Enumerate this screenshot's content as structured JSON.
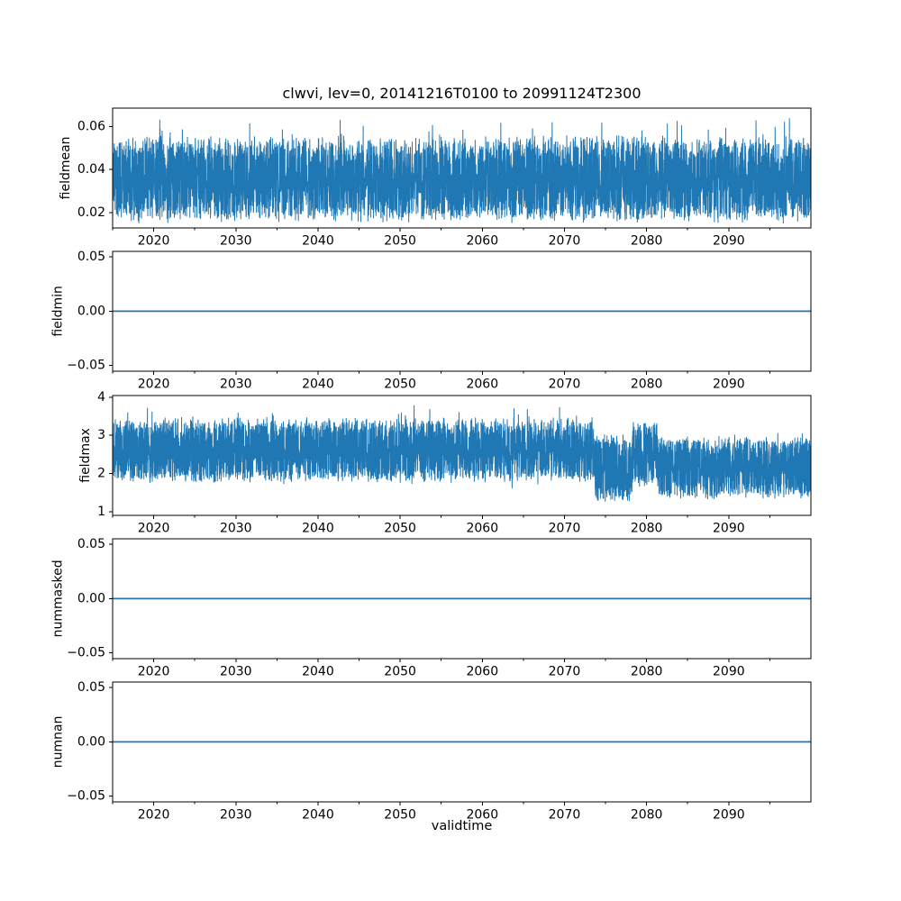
{
  "figure": {
    "background_color": "#ffffff",
    "line_color": "#1f77b4",
    "spine_color": "#000000",
    "text_color": "#000000"
  },
  "chart_data": {
    "type": "line",
    "title": "clwvi, lev=0, 20141216T0100 to 20991124T2300",
    "variable": "clwvi",
    "level": "lev=0",
    "time_range": {
      "start": "20141216T0100",
      "end": "20991124T2300"
    },
    "xlabel": "validtime",
    "legend": "none",
    "grid": false,
    "x_axis": {
      "lim": [
        2015,
        2100
      ],
      "major_ticks": [
        2020,
        2030,
        2040,
        2050,
        2060,
        2070,
        2080,
        2090
      ],
      "major_tick_labels": [
        "2020",
        "2030",
        "2040",
        "2050",
        "2060",
        "2070",
        "2080",
        "2090"
      ],
      "minor_ticks": [
        2015,
        2025,
        2035,
        2045,
        2055,
        2065,
        2075,
        2085,
        2095
      ]
    },
    "panels": [
      {
        "name": "fieldmean",
        "ylabel": "fieldmean",
        "ylim": [
          0.0129,
          0.0685
        ],
        "yticks": [
          0.02,
          0.04,
          0.06
        ],
        "ytick_labels": [
          "0.02",
          "0.04",
          "0.06"
        ],
        "series": {
          "kind": "noisy-band",
          "seed": 1337,
          "points": 6500,
          "linewidth": 1.0,
          "approx_solid_band": [
            0.024,
            0.047
          ],
          "approx_extremes": [
            0.015,
            0.066
          ],
          "segments": [
            {
              "x0": 2015,
              "x1": 2100,
              "mean": 0.034,
              "spread": 0.0125,
              "up_fuzz": {
                "p": 0.26,
                "amp": 0.011
              },
              "spike_up": {
                "p": 0.01,
                "amp": 0.019
              },
              "down_fuzz": {
                "p": 0.2,
                "amp": 0.0075
              },
              "spike_down": {
                "p": 0.0,
                "amp": 0.0
              }
            }
          ]
        }
      },
      {
        "name": "fieldmin",
        "ylabel": "fieldmin",
        "ylim": [
          -0.055,
          0.055
        ],
        "yticks": [
          -0.05,
          0.0,
          0.05
        ],
        "ytick_labels": [
          "−0.05",
          "0.00",
          "0.05"
        ],
        "series": {
          "kind": "constant",
          "value": 0.0,
          "linewidth": 1.8
        }
      },
      {
        "name": "fieldmax",
        "ylabel": "fieldmax",
        "ylim": [
          0.9075,
          4.0425
        ],
        "yticks": [
          1,
          2,
          3,
          4
        ],
        "ytick_labels": [
          "1",
          "2",
          "3",
          "4"
        ],
        "series": {
          "kind": "noisy-band",
          "seed": 4242,
          "points": 6500,
          "linewidth": 1.0,
          "approx_solid_band": [
            1.9,
            3.1
          ],
          "approx_extremes": [
            1.05,
            3.9
          ],
          "segments": [
            {
              "x0": 2015,
              "x1": 2073.7,
              "mean": 2.55,
              "spread": 0.45,
              "up_fuzz": {
                "p": 0.3,
                "amp": 0.55
              },
              "spike_up": {
                "p": 0.008,
                "amp": 0.85
              },
              "down_fuzz": {
                "p": 0.25,
                "amp": 0.4
              },
              "spike_down": {
                "p": 0.002,
                "amp": 0.55
              }
            },
            {
              "x0": 2073.7,
              "x1": 2078.3,
              "mean": 2.08,
              "spread": 0.5,
              "up_fuzz": {
                "p": 0.3,
                "amp": 0.55
              },
              "spike_up": {
                "p": 0.006,
                "amp": 0.45
              },
              "down_fuzz": {
                "p": 0.25,
                "amp": 0.45
              },
              "spike_down": {
                "p": 0.004,
                "amp": 0.5
              }
            },
            {
              "x0": 2078.3,
              "x1": 2081.3,
              "mean": 2.5,
              "spread": 0.48,
              "up_fuzz": {
                "p": 0.3,
                "amp": 0.5
              },
              "spike_up": {
                "p": 0.006,
                "amp": 0.42
              },
              "down_fuzz": {
                "p": 0.25,
                "amp": 0.45
              },
              "spike_down": {
                "p": 0.003,
                "amp": 0.6
              }
            },
            {
              "x0": 2081.3,
              "x1": 2100,
              "mean": 2.12,
              "spread": 0.45,
              "up_fuzz": {
                "p": 0.3,
                "amp": 0.5
              },
              "spike_up": {
                "p": 0.004,
                "amp": 0.72
              },
              "down_fuzz": {
                "p": 0.25,
                "amp": 0.4
              },
              "spike_down": {
                "p": 0.0015,
                "amp": 0.62
              }
            }
          ]
        }
      },
      {
        "name": "nummasked",
        "ylabel": "nummasked",
        "ylim": [
          -0.055,
          0.055
        ],
        "yticks": [
          -0.05,
          0.0,
          0.05
        ],
        "ytick_labels": [
          "−0.05",
          "0.00",
          "0.05"
        ],
        "series": {
          "kind": "constant",
          "value": 0.0,
          "linewidth": 1.8
        }
      },
      {
        "name": "numnan",
        "ylabel": "numnan",
        "ylim": [
          -0.055,
          0.055
        ],
        "yticks": [
          -0.05,
          0.0,
          0.05
        ],
        "ytick_labels": [
          "−0.05",
          "0.00",
          "0.05"
        ],
        "series": {
          "kind": "constant",
          "value": 0.0,
          "linewidth": 1.8
        }
      }
    ]
  }
}
